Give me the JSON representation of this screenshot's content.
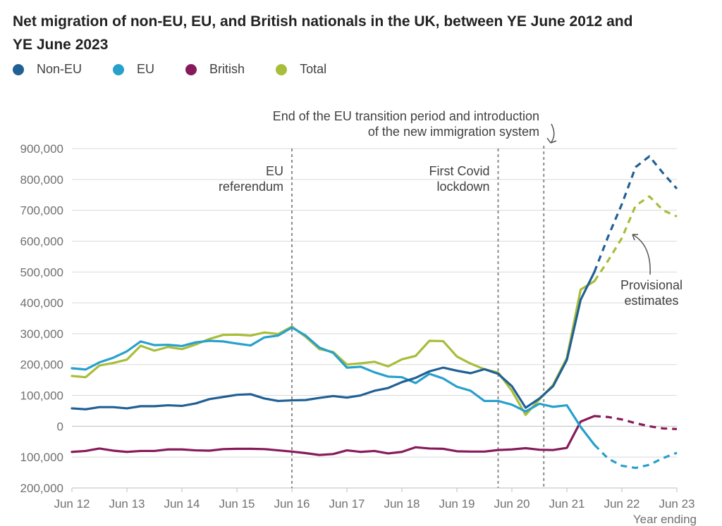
{
  "title": "Net migration of non-EU, EU, and British nationals in the UK, between YE June 2012 and YE June 2023",
  "chart_data": {
    "type": "line",
    "title": "Net migration of non-EU, EU, and British nationals in the UK, between YE June 2012 and YE June 2023",
    "xlabel": "Year ending",
    "ylabel": "",
    "ylim": [
      -200000,
      900000
    ],
    "yticks": [
      900000,
      800000,
      700000,
      600000,
      500000,
      400000,
      300000,
      200000,
      100000,
      0,
      -100000,
      -200000
    ],
    "ytick_labels": [
      "900,000",
      "800,000",
      "700,000",
      "600,000",
      "500,000",
      "400,000",
      "300,000",
      "200,000",
      "100,000",
      "0",
      "100,000",
      "200,000"
    ],
    "xlim": [
      2012.5,
      2023.5
    ],
    "xticks": [
      2012.5,
      2013.5,
      2014.5,
      2015.5,
      2016.5,
      2017.5,
      2018.5,
      2019.5,
      2020.5,
      2021.5,
      2022.5,
      2023.5
    ],
    "xtick_labels": [
      "Jun 12",
      "Jun 13",
      "Jun 14",
      "Jun 15",
      "Jun 16",
      "Jun 17",
      "Jun 18",
      "Jun 19",
      "Jun 20",
      "Jun 21",
      "Jun 22",
      "Jun 23"
    ],
    "grid": true,
    "legend_position": "top-left",
    "x": [
      2012.5,
      2012.75,
      2013.0,
      2013.25,
      2013.5,
      2013.75,
      2014.0,
      2014.25,
      2014.5,
      2014.75,
      2015.0,
      2015.25,
      2015.5,
      2015.75,
      2016.0,
      2016.25,
      2016.5,
      2016.75,
      2017.0,
      2017.25,
      2017.5,
      2017.75,
      2018.0,
      2018.25,
      2018.5,
      2018.75,
      2019.0,
      2019.25,
      2019.5,
      2019.75,
      2020.0,
      2020.25,
      2020.5,
      2020.75,
      2021.0,
      2021.25,
      2021.5,
      2021.75,
      2022.0,
      2022.25,
      2022.5,
      2022.75,
      2023.0,
      2023.25,
      2023.5
    ],
    "provisional_from": 2022.0,
    "series": [
      {
        "name": "Non-EU",
        "color": "#206095",
        "values": [
          58000,
          55000,
          62000,
          62000,
          58000,
          65000,
          65000,
          68000,
          66000,
          74000,
          88000,
          95000,
          102000,
          104000,
          90000,
          82000,
          84000,
          85000,
          92000,
          98000,
          93000,
          100000,
          115000,
          124000,
          143000,
          157000,
          178000,
          190000,
          180000,
          172000,
          185000,
          170000,
          130000,
          60000,
          90000,
          130000,
          215000,
          410000,
          500000,
          615000,
          720000,
          840000,
          875000,
          820000,
          770000
        ]
      },
      {
        "name": "EU",
        "color": "#27a0cc",
        "values": [
          188000,
          184000,
          207000,
          222000,
          243000,
          275000,
          263000,
          264000,
          260000,
          272000,
          277000,
          275000,
          268000,
          262000,
          288000,
          294000,
          320000,
          294000,
          255000,
          238000,
          190000,
          193000,
          175000,
          161000,
          159000,
          140000,
          170000,
          155000,
          128000,
          115000,
          82000,
          82000,
          70000,
          48000,
          73000,
          63000,
          68000,
          -2000,
          -60000,
          -105000,
          -128000,
          -135000,
          -125000,
          -103000,
          -86000
        ]
      },
      {
        "name": "British",
        "color": "#871a5b",
        "values": [
          -83000,
          -80000,
          -72000,
          -79000,
          -83000,
          -80000,
          -80000,
          -75000,
          -75000,
          -78000,
          -79000,
          -74000,
          -73000,
          -73000,
          -74000,
          -78000,
          -82000,
          -87000,
          -93000,
          -90000,
          -78000,
          -83000,
          -80000,
          -88000,
          -83000,
          -68000,
          -72000,
          -73000,
          -81000,
          -82000,
          -82000,
          -77000,
          -75000,
          -71000,
          -76000,
          -77000,
          -70000,
          15000,
          33000,
          30000,
          22000,
          10000,
          0,
          -7000,
          -9000
        ]
      },
      {
        "name": "Total",
        "color": "#a8bd3a",
        "values": [
          163000,
          159000,
          197000,
          205000,
          216000,
          261000,
          245000,
          257000,
          250000,
          265000,
          283000,
          296000,
          297000,
          294000,
          304000,
          299000,
          323000,
          290000,
          250000,
          241000,
          200000,
          204000,
          209000,
          194000,
          217000,
          228000,
          277000,
          276000,
          226000,
          203000,
          185000,
          174000,
          115000,
          37000,
          87000,
          134000,
          222000,
          443000,
          470000,
          537000,
          610000,
          715000,
          745000,
          700000,
          680000
        ]
      }
    ],
    "annotations": [
      {
        "x": 2016.5,
        "text": "EU referendum",
        "lines": [
          "EU",
          "referendum"
        ]
      },
      {
        "x": 2020.25,
        "text": "First Covid lockdown",
        "lines": [
          "First Covid",
          "lockdown"
        ]
      },
      {
        "x": 2021.08,
        "text": "End of the EU transition period and introduction of the new immigration system",
        "lines": [
          "End of the EU transition period and introduction",
          "of the new immigration system"
        ]
      },
      {
        "text": "Provisional estimates",
        "lines": [
          "Provisional",
          "estimates"
        ]
      }
    ]
  }
}
